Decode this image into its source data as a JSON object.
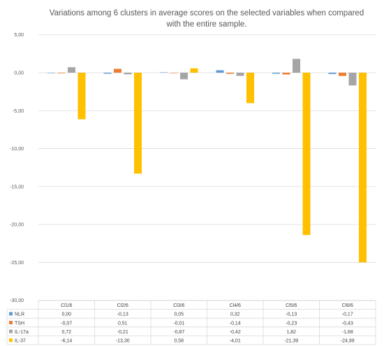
{
  "chart_data": {
    "type": "bar",
    "title_lines": [
      "Variations among 6 clusters in average scores on the selected variables when compared",
      "with the entire sample."
    ],
    "categories": [
      "Cl1/6",
      "Cl2/6",
      "Cl3/6",
      "Cl4/6",
      "Cl5/6",
      "Cl6/6"
    ],
    "series": [
      {
        "name": "NLR",
        "color": "#5B9BD5",
        "values": [
          0.0,
          -0.13,
          0.05,
          0.32,
          -0.13,
          -0.17
        ],
        "labels": [
          "0,00",
          "-0,13",
          "0,05",
          "0,32",
          "-0,13",
          "-0,17"
        ]
      },
      {
        "name": "TSH",
        "color": "#ED7D31",
        "values": [
          -0.07,
          0.51,
          -0.01,
          -0.14,
          -0.23,
          -0.43
        ],
        "labels": [
          "-0,07",
          "0,51",
          "-0,01",
          "-0,14",
          "-0,23",
          "-0,43"
        ]
      },
      {
        "name": "IL-17a",
        "color": "#A5A5A5",
        "values": [
          0.72,
          -0.21,
          -0.87,
          -0.42,
          1.82,
          -1.68
        ],
        "labels": [
          "0,72",
          "-0,21",
          "-0,87",
          "-0,42",
          "1,82",
          "-1,68"
        ]
      },
      {
        "name": "IL-37",
        "color": "#FFC000",
        "values": [
          -6.14,
          -13.3,
          0.58,
          -4.01,
          -21.39,
          -24.99
        ],
        "labels": [
          "-6,14",
          "-13,30",
          "0,58",
          "-4,01",
          "-21,39",
          "-24,99"
        ]
      }
    ],
    "ylim": [
      -30,
      5
    ],
    "yticks": [
      5,
      0,
      -5,
      -10,
      -15,
      -20,
      -25,
      -30
    ],
    "ytick_labels": [
      "5,00",
      "0,00",
      "-5,00",
      "-10,00",
      "-15,00",
      "-20,00",
      "-25,00",
      "-30,00"
    ],
    "grid": true,
    "legend": "data-table-below"
  }
}
